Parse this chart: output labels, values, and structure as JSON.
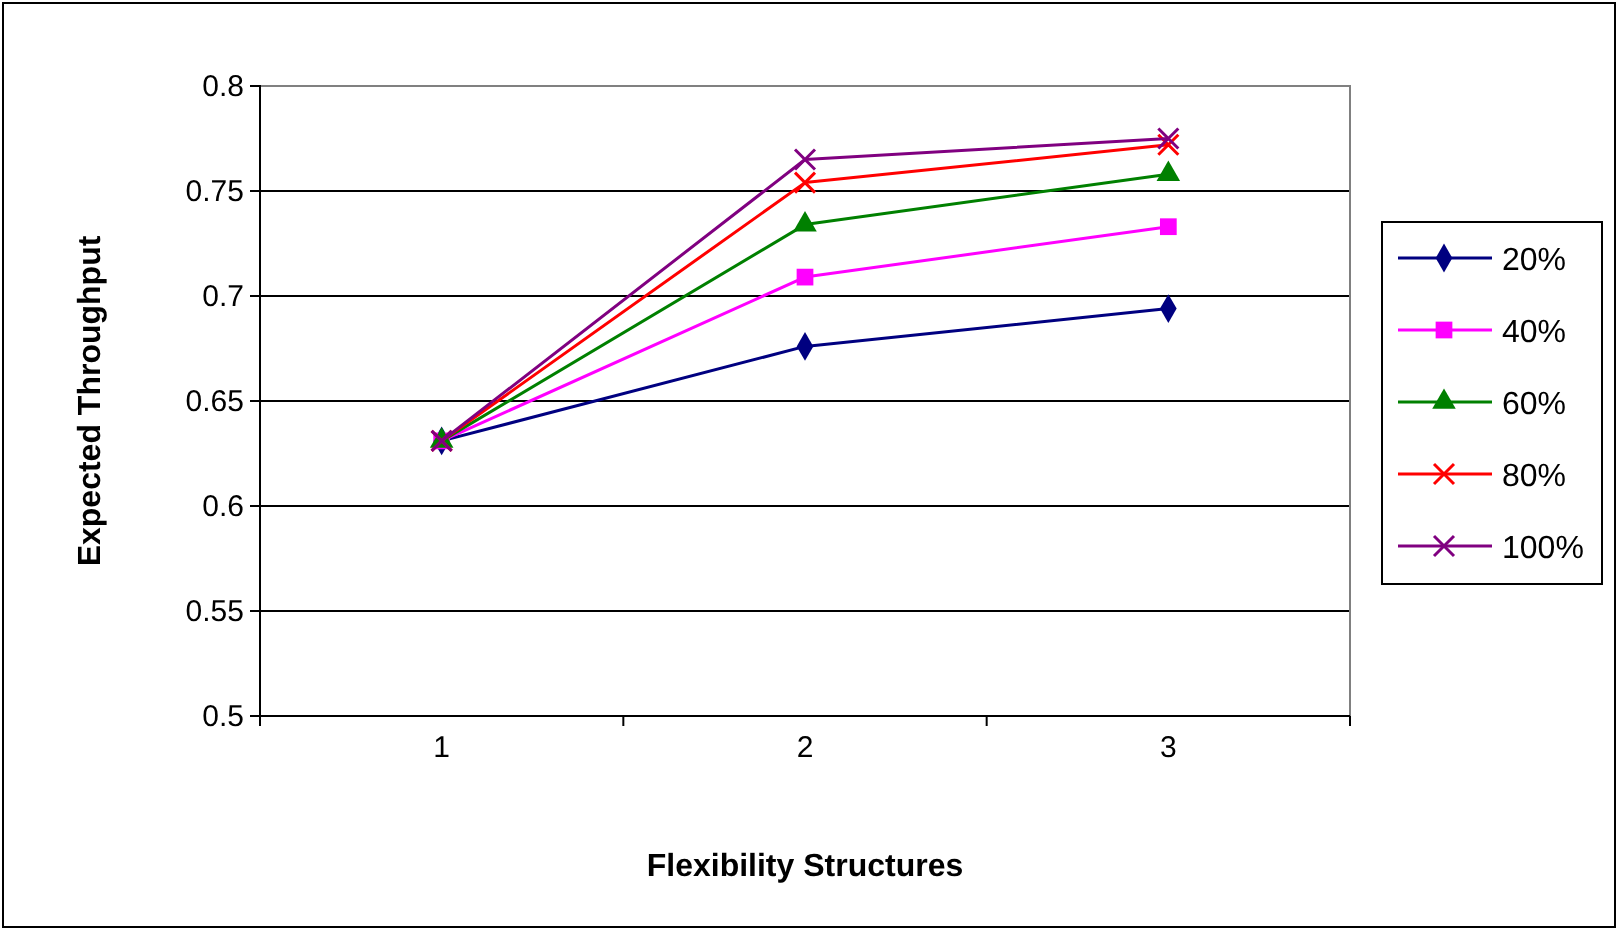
{
  "chart_data": {
    "type": "line",
    "xlabel": "Flexibility Structures",
    "ylabel": "Expected Throughput",
    "categories": [
      "1",
      "2",
      "3"
    ],
    "ylim": [
      0.5,
      0.8
    ],
    "yticks": [
      0.5,
      0.55,
      0.6,
      0.65,
      0.7,
      0.75,
      0.8
    ],
    "grid": "y",
    "legend": "right",
    "series": [
      {
        "name": "20%",
        "color": "#000080",
        "marker": "diamond",
        "values": [
          0.631,
          0.676,
          0.694
        ]
      },
      {
        "name": "40%",
        "color": "#ff00ff",
        "marker": "square",
        "values": [
          0.631,
          0.709,
          0.733
        ]
      },
      {
        "name": "60%",
        "color": "#008000",
        "marker": "triangle",
        "values": [
          0.631,
          0.734,
          0.758
        ]
      },
      {
        "name": "80%",
        "color": "#ff0000",
        "marker": "cross",
        "values": [
          0.631,
          0.754,
          0.772
        ]
      },
      {
        "name": "100%",
        "color": "#800080",
        "marker": "cross",
        "values": [
          0.631,
          0.765,
          0.775
        ]
      }
    ]
  }
}
